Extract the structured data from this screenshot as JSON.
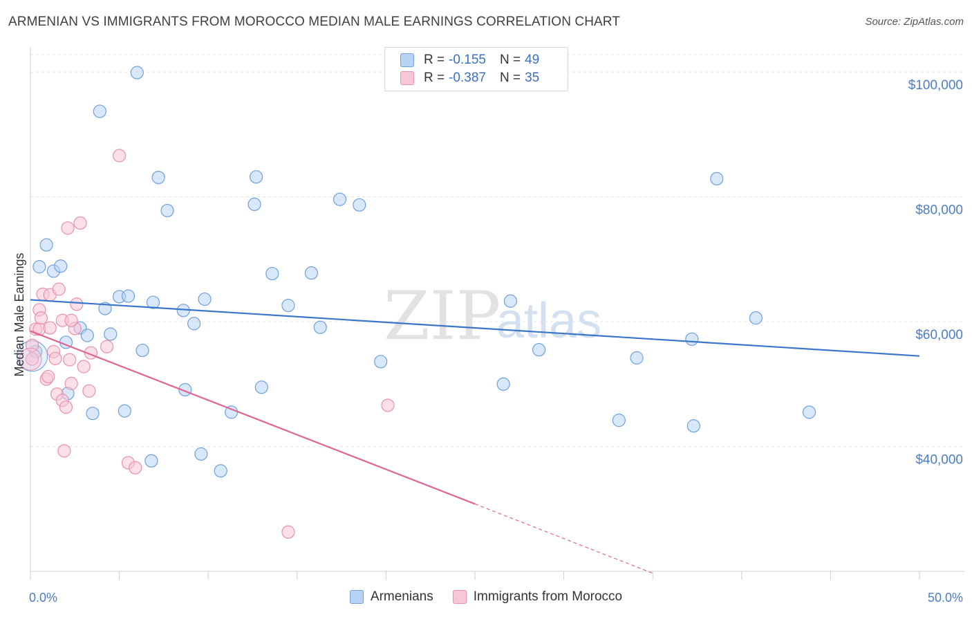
{
  "header": {
    "title": "ARMENIAN VS IMMIGRANTS FROM MOROCCO MEDIAN MALE EARNINGS CORRELATION CHART",
    "source": "Source: ZipAtlas.com"
  },
  "watermark": {
    "zip": "ZIP",
    "atlas": "atlas"
  },
  "colors": {
    "armenians_fill": "#b8d3f5",
    "armenians_stroke": "#6f9fdc",
    "armenians_line": "#3a76c9",
    "morocco_fill": "#f8c6d6",
    "morocco_stroke": "#e890ad",
    "morocco_line": "#e06691",
    "grid": "#e3e3e3",
    "axis_label": "#4a7cc7"
  },
  "legend": {
    "rows": [
      {
        "r_label": "R = ",
        "r_value": "-0.155",
        "n_label": "N = ",
        "n_value": "49"
      },
      {
        "r_label": "R = ",
        "r_value": "-0.387",
        "n_label": "N = ",
        "n_value": "35"
      }
    ]
  },
  "bottom_legend": {
    "armenians": "Armenians",
    "morocco": "Immigrants from Morocco"
  },
  "chart_data": {
    "type": "scatter",
    "title": "ARMENIAN VS IMMIGRANTS FROM MOROCCO MEDIAN MALE EARNINGS CORRELATION CHART",
    "xlabel": "",
    "ylabel": "Median Male Earnings",
    "xlim": [
      0,
      50
    ],
    "ylim": [
      20000,
      104000
    ],
    "x_ticks": [
      0,
      50
    ],
    "x_tick_labels": [
      "0.0%",
      "50.0%"
    ],
    "y_ticks": [
      40000,
      60000,
      80000,
      100000
    ],
    "y_tick_labels": [
      "$40,000",
      "$60,000",
      "$80,000",
      "$100,000"
    ],
    "grid": true,
    "legend_position": "top-center",
    "series": [
      {
        "name": "Armenians",
        "trend": {
          "x": [
            0,
            50
          ],
          "y": [
            63500,
            54500
          ]
        },
        "points": [
          [
            0.3,
            55200
          ],
          [
            0.5,
            68800
          ],
          [
            0.9,
            72300
          ],
          [
            1.3,
            68100
          ],
          [
            1.7,
            68900
          ],
          [
            2.0,
            56700
          ],
          [
            2.1,
            48500
          ],
          [
            2.8,
            59000
          ],
          [
            3.2,
            57800
          ],
          [
            3.5,
            45300
          ],
          [
            3.9,
            93700
          ],
          [
            4.2,
            62100
          ],
          [
            4.5,
            58000
          ],
          [
            5.0,
            64000
          ],
          [
            5.3,
            45700
          ],
          [
            5.5,
            64100
          ],
          [
            6.0,
            99900
          ],
          [
            6.3,
            55400
          ],
          [
            6.8,
            37700
          ],
          [
            6.9,
            63100
          ],
          [
            7.2,
            83100
          ],
          [
            7.7,
            77800
          ],
          [
            8.6,
            61800
          ],
          [
            8.7,
            49100
          ],
          [
            9.2,
            59700
          ],
          [
            9.6,
            38800
          ],
          [
            9.8,
            63600
          ],
          [
            10.7,
            36100
          ],
          [
            11.3,
            45500
          ],
          [
            12.6,
            78800
          ],
          [
            12.7,
            83200
          ],
          [
            13.0,
            49500
          ],
          [
            13.6,
            67700
          ],
          [
            14.5,
            62600
          ],
          [
            15.8,
            67800
          ],
          [
            16.3,
            59100
          ],
          [
            17.4,
            79600
          ],
          [
            18.5,
            78700
          ],
          [
            19.7,
            53600
          ],
          [
            26.6,
            50000
          ],
          [
            27.0,
            63300
          ],
          [
            28.6,
            55500
          ],
          [
            33.1,
            44200
          ],
          [
            34.1,
            54200
          ],
          [
            37.2,
            57200
          ],
          [
            37.3,
            43300
          ],
          [
            38.6,
            82900
          ],
          [
            40.8,
            60600
          ],
          [
            43.8,
            45500
          ]
        ]
      },
      {
        "name": "Immigrants from Morocco",
        "trend": {
          "x": [
            0,
            25
          ],
          "y": [
            58500,
            30800
          ]
        },
        "trend_extension": {
          "x": [
            25,
            35
          ],
          "y": [
            30800,
            19700
          ]
        },
        "points": [
          [
            0.1,
            54000
          ],
          [
            0.1,
            56200
          ],
          [
            0.3,
            58800
          ],
          [
            0.5,
            58800
          ],
          [
            0.5,
            61900
          ],
          [
            0.6,
            60600
          ],
          [
            0.7,
            64400
          ],
          [
            0.9,
            50800
          ],
          [
            1.0,
            51200
          ],
          [
            1.1,
            64300
          ],
          [
            1.1,
            59000
          ],
          [
            1.3,
            55200
          ],
          [
            1.4,
            54100
          ],
          [
            1.5,
            48400
          ],
          [
            1.6,
            65200
          ],
          [
            1.8,
            60200
          ],
          [
            1.8,
            47400
          ],
          [
            1.9,
            39300
          ],
          [
            2.0,
            46300
          ],
          [
            2.1,
            75000
          ],
          [
            2.2,
            53900
          ],
          [
            2.3,
            50100
          ],
          [
            2.5,
            58900
          ],
          [
            2.6,
            62800
          ],
          [
            2.8,
            75800
          ],
          [
            3.0,
            52800
          ],
          [
            3.3,
            48900
          ],
          [
            3.4,
            55000
          ],
          [
            4.3,
            56000
          ],
          [
            5.0,
            86600
          ],
          [
            5.5,
            37400
          ],
          [
            5.9,
            36600
          ],
          [
            20.1,
            46600
          ],
          [
            14.5,
            26300
          ],
          [
            2.3,
            60200
          ]
        ]
      }
    ]
  }
}
